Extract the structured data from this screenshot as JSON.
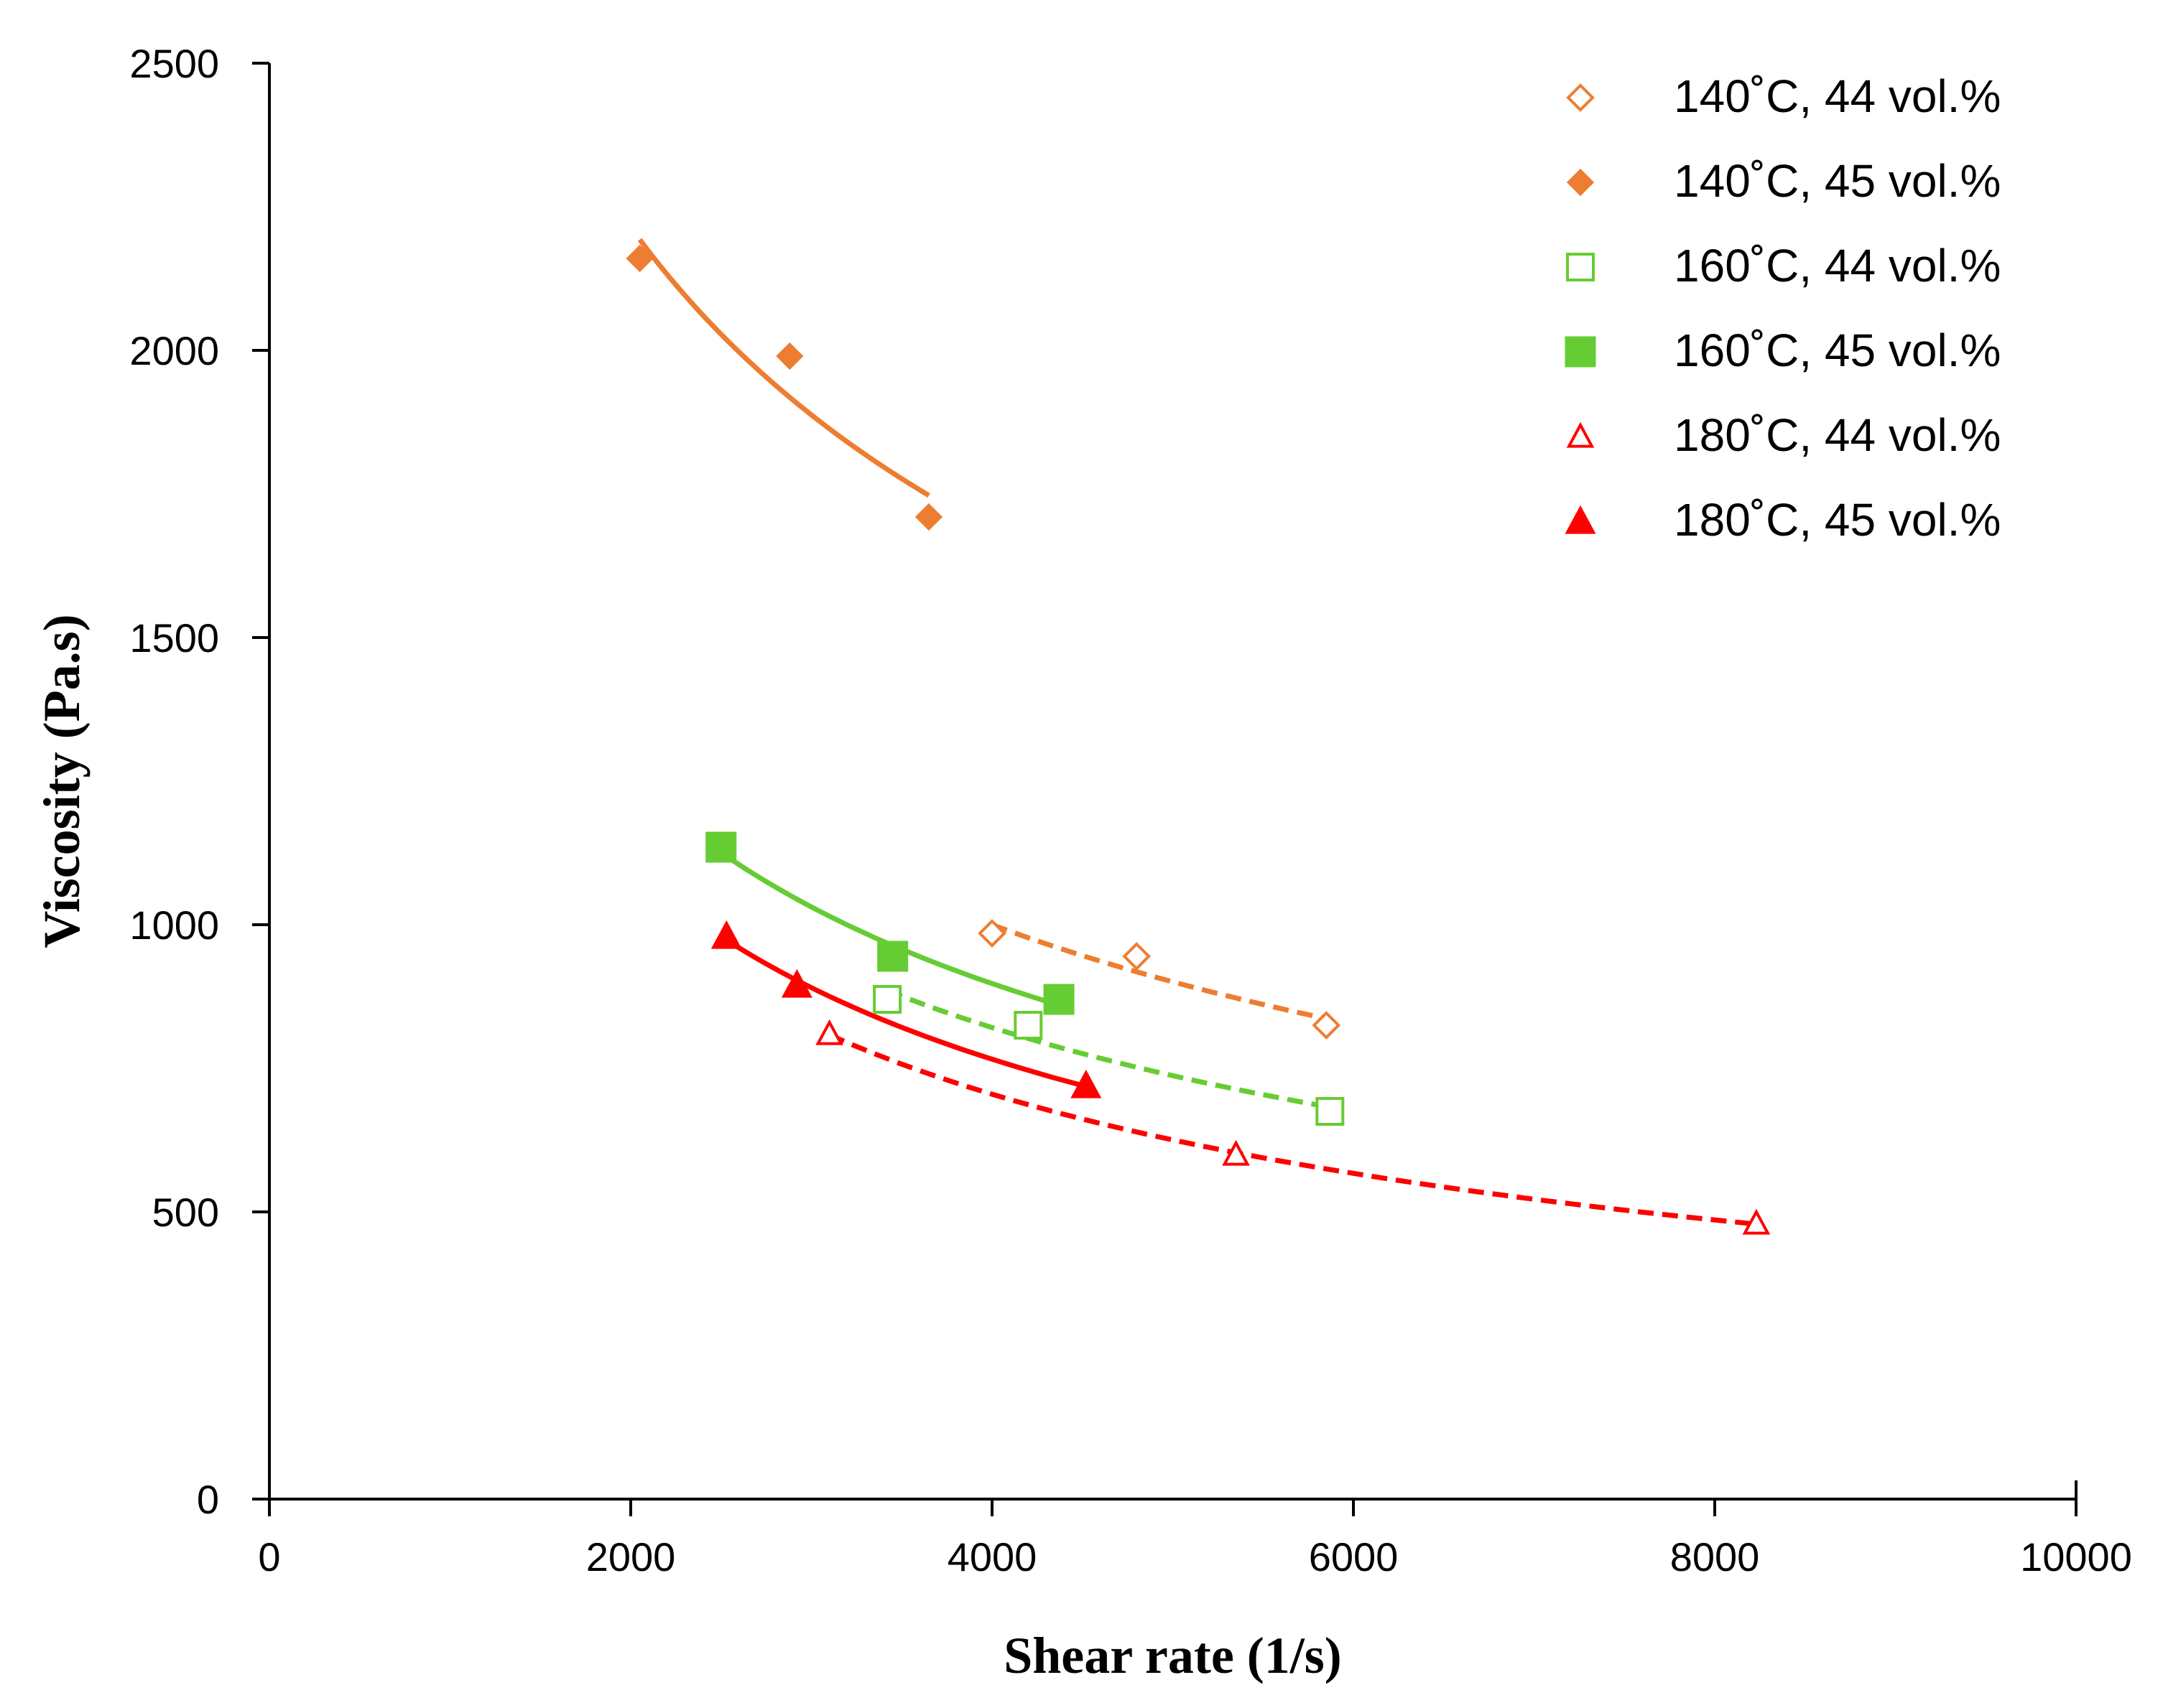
{
  "chart_data": {
    "type": "scatter",
    "title": "",
    "xlabel": "Shear rate (1/s)",
    "ylabel": "Viscosity (Pa.s)",
    "xlim": [
      0,
      10000
    ],
    "ylim": [
      0,
      2500
    ],
    "x_ticks": [
      0,
      2000,
      4000,
      6000,
      8000,
      10000
    ],
    "y_ticks": [
      0,
      500,
      1000,
      1500,
      2000,
      2500
    ],
    "x_tick_labels": [
      "0",
      "2000",
      "4000",
      "6000",
      "8000",
      "10000"
    ],
    "y_tick_labels": [
      "0",
      "500",
      "1000",
      "1500",
      "2000",
      "2500"
    ],
    "grid": false,
    "legend_position": "top-right",
    "series": [
      {
        "name": "140˚C, 44 vol.%",
        "label": "140˚C, 44 vol.%",
        "color": "#ED7D31",
        "marker": "diamond-open",
        "fit_line": "dashed",
        "x": [
          4000,
          4800,
          5850
        ],
        "y": [
          985,
          945,
          825
        ]
      },
      {
        "name": "140˚C, 45 vol.%",
        "label": "140˚C, 45 vol.%",
        "color": "#ED7D31",
        "marker": "diamond-filled",
        "fit_line": "solid",
        "x": [
          2050,
          2880,
          3650
        ],
        "y": [
          2160,
          1990,
          1710
        ]
      },
      {
        "name": "160˚C, 44 vol.%",
        "label": "160˚C, 44 vol.%",
        "color": "#66CC33",
        "marker": "square-open",
        "fit_line": "dashed",
        "x": [
          3420,
          4200,
          5870
        ],
        "y": [
          870,
          825,
          675
        ]
      },
      {
        "name": "160˚C, 45 vol.%",
        "label": "160˚C, 45 vol.%",
        "color": "#66CC33",
        "marker": "square-filled",
        "fit_line": "solid",
        "x": [
          2500,
          3450,
          4370
        ],
        "y": [
          1135,
          945,
          870
        ]
      },
      {
        "name": "180˚C, 44 vol.%",
        "label": "180˚C, 44 vol.%",
        "color": "#FF0000",
        "marker": "triangle-open",
        "fit_line": "dashed",
        "x": [
          3100,
          5350,
          8230
        ],
        "y": [
          810,
          600,
          480
        ]
      },
      {
        "name": "180˚C, 45 vol.%",
        "label": "180˚C, 45 vol.%",
        "color": "#FF0000",
        "marker": "triangle-filled",
        "fit_line": "solid",
        "x": [
          2530,
          2920,
          4520
        ],
        "y": [
          980,
          895,
          720
        ]
      }
    ]
  }
}
